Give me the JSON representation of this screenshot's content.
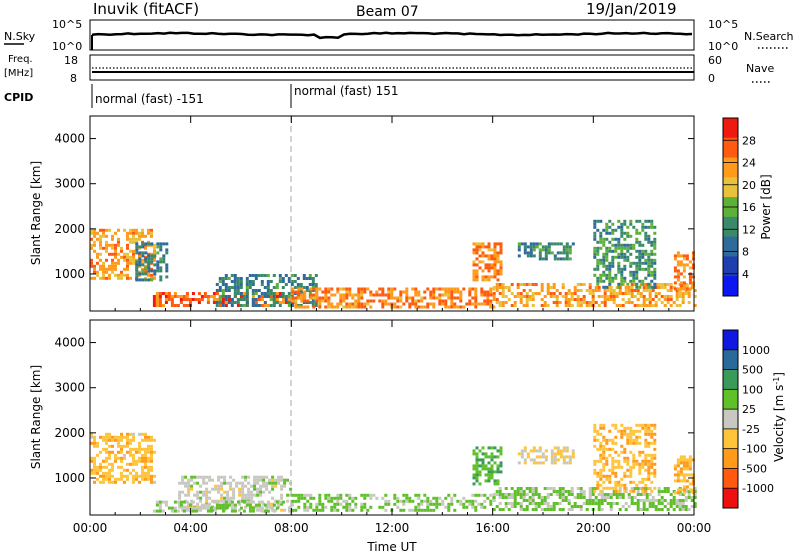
{
  "header": {
    "station": "Inuvik (fitACF)",
    "beam": "Beam 07",
    "date": "19/Jan/2019"
  },
  "nsky_panel": {
    "left_label": "N.Sky",
    "left_ticks": [
      "10^5",
      "10^0"
    ],
    "right_label": "N.Search",
    "right_ticks": [
      "10^5",
      "10^0"
    ]
  },
  "freq_panel": {
    "left_label_line1": "Freq.",
    "left_label_line2": "[MHz]",
    "left_ticks": [
      "18",
      "8"
    ],
    "right_label": "Nave",
    "right_ticks": [
      "60",
      "0"
    ]
  },
  "cpid_panel": {
    "label": "CPID",
    "modes": [
      {
        "text": "normal (fast) -151",
        "start_hour": 0
      },
      {
        "text": "normal (fast) 151",
        "start_hour": 8
      }
    ]
  },
  "colors": {
    "power_scale": [
      "#0b17f0",
      "#1f3fb0",
      "#2e6b9a",
      "#3a8a6a",
      "#5db038",
      "#e8c23a",
      "#ff9a1a",
      "#ff5a10",
      "#ee1a10"
    ],
    "velocity_scale": [
      "#ee1010",
      "#ff5a10",
      "#ff9a1a",
      "#ffc43a",
      "#c8c8c0",
      "#5fc02a",
      "#3a9a5a",
      "#2a6a9a",
      "#1018e0"
    ],
    "ground_scatter": "#c8c8c0"
  },
  "chart_data": [
    {
      "type": "heatmap",
      "name": "power",
      "ylabel": "Slant Range [km]",
      "yticks": [
        1000,
        2000,
        3000,
        4000
      ],
      "ylim": [
        180,
        4500
      ],
      "xlim": [
        0,
        24
      ],
      "xticks": [
        "00:00",
        "04:00",
        "08:00",
        "12:00",
        "16:00",
        "20:00",
        "00:00"
      ],
      "colorbar_label": "Power [dB]",
      "colorbar_ticks": [
        "28",
        "24",
        "20",
        "16",
        "12",
        "8",
        "4"
      ],
      "colorbar_range": [
        0,
        30
      ],
      "scatter_regions": [
        {
          "t0": 0.0,
          "t1": 2.6,
          "r0": 900,
          "r1": 2000,
          "level": 22
        },
        {
          "t0": 1.8,
          "t1": 3.0,
          "r0": 850,
          "r1": 1700,
          "level": 10
        },
        {
          "t0": 2.5,
          "t1": 8.0,
          "r0": 300,
          "r1": 600,
          "level": 26
        },
        {
          "t0": 5.0,
          "t1": 9.0,
          "r0": 300,
          "r1": 1000,
          "level": 10
        },
        {
          "t0": 8.0,
          "t1": 16.0,
          "r0": 280,
          "r1": 700,
          "level": 24
        },
        {
          "t0": 15.2,
          "t1": 16.3,
          "r0": 900,
          "r1": 1700,
          "level": 24
        },
        {
          "t0": 17.0,
          "t1": 19.2,
          "r0": 1350,
          "r1": 1700,
          "level": 11
        },
        {
          "t0": 16.0,
          "t1": 24.0,
          "r0": 280,
          "r1": 800,
          "level": 22
        },
        {
          "t0": 20.0,
          "t1": 22.5,
          "r0": 700,
          "r1": 2200,
          "level": 12
        },
        {
          "t0": 23.2,
          "t1": 24.0,
          "r0": 700,
          "r1": 1500,
          "level": 24
        }
      ]
    },
    {
      "type": "heatmap",
      "name": "velocity",
      "ylabel": "Slant Range [km]",
      "yticks": [
        1000,
        2000,
        3000,
        4000
      ],
      "ylim": [
        180,
        4500
      ],
      "xlim": [
        0,
        24
      ],
      "xticks": [
        "00:00",
        "04:00",
        "08:00",
        "12:00",
        "16:00",
        "20:00",
        "00:00"
      ],
      "xlabel": "Time UT",
      "colorbar_label": "Velocity [m s^-1]",
      "colorbar_ticks": [
        "1000",
        "500",
        "100",
        "25",
        "-25",
        "-100",
        "-500",
        "-1000"
      ],
      "colorbar_range": [
        -1250,
        1250
      ],
      "scatter_regions": [
        {
          "t0": 0.0,
          "t1": 2.6,
          "r0": 900,
          "r1": 2000,
          "level": -350
        },
        {
          "t0": 3.5,
          "t1": 8.0,
          "r0": 300,
          "r1": 1050,
          "level": 0
        },
        {
          "t0": 2.5,
          "t1": 8.0,
          "r0": 280,
          "r1": 500,
          "level": 200
        },
        {
          "t0": 8.0,
          "t1": 16.0,
          "r0": 280,
          "r1": 650,
          "level": 250
        },
        {
          "t0": 15.2,
          "t1": 16.3,
          "r0": 900,
          "r1": 1700,
          "level": 400
        },
        {
          "t0": 17.0,
          "t1": 19.2,
          "r0": 1350,
          "r1": 1700,
          "level": -150
        },
        {
          "t0": 16.0,
          "t1": 24.0,
          "r0": 280,
          "r1": 800,
          "level": 200
        },
        {
          "t0": 20.0,
          "t1": 22.5,
          "r0": 700,
          "r1": 2200,
          "level": -400
        },
        {
          "t0": 23.2,
          "t1": 24.0,
          "r0": 700,
          "r1": 1500,
          "level": -400
        }
      ]
    }
  ]
}
